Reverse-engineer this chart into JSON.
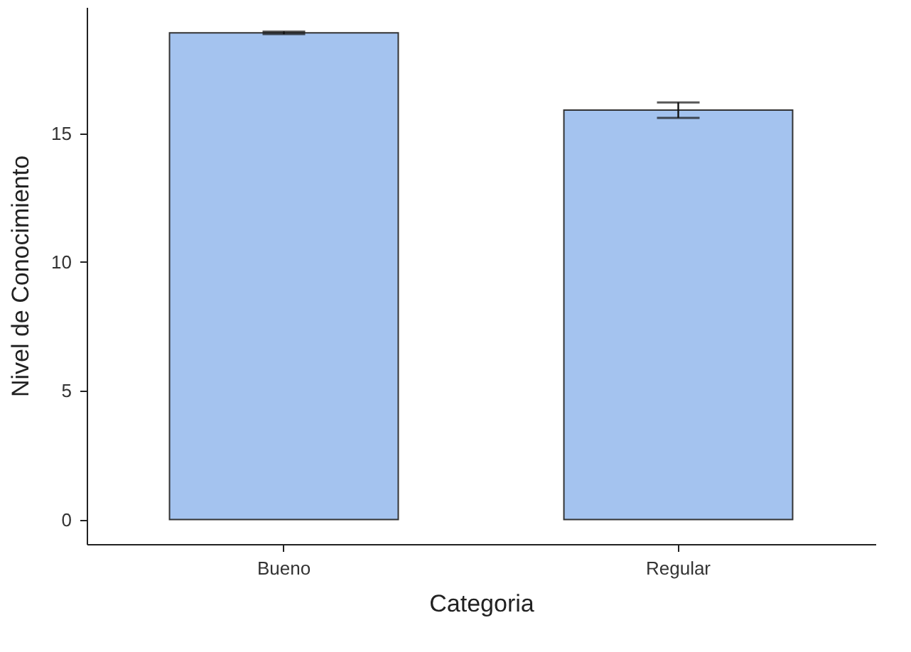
{
  "chart_data": {
    "type": "bar",
    "xlabel": "Categoria",
    "ylabel": "Nivel de Conocimiento",
    "categories": [
      "Bueno",
      "Regular"
    ],
    "series": [
      {
        "color": "#a4c3ef",
        "values": [
          18.9,
          15.9
        ],
        "errors": [
          0.05,
          0.3
        ]
      }
    ],
    "ylim": [
      -0.95,
      19.9
    ],
    "yticks": [
      0,
      5,
      10,
      15
    ],
    "grid": false
  }
}
